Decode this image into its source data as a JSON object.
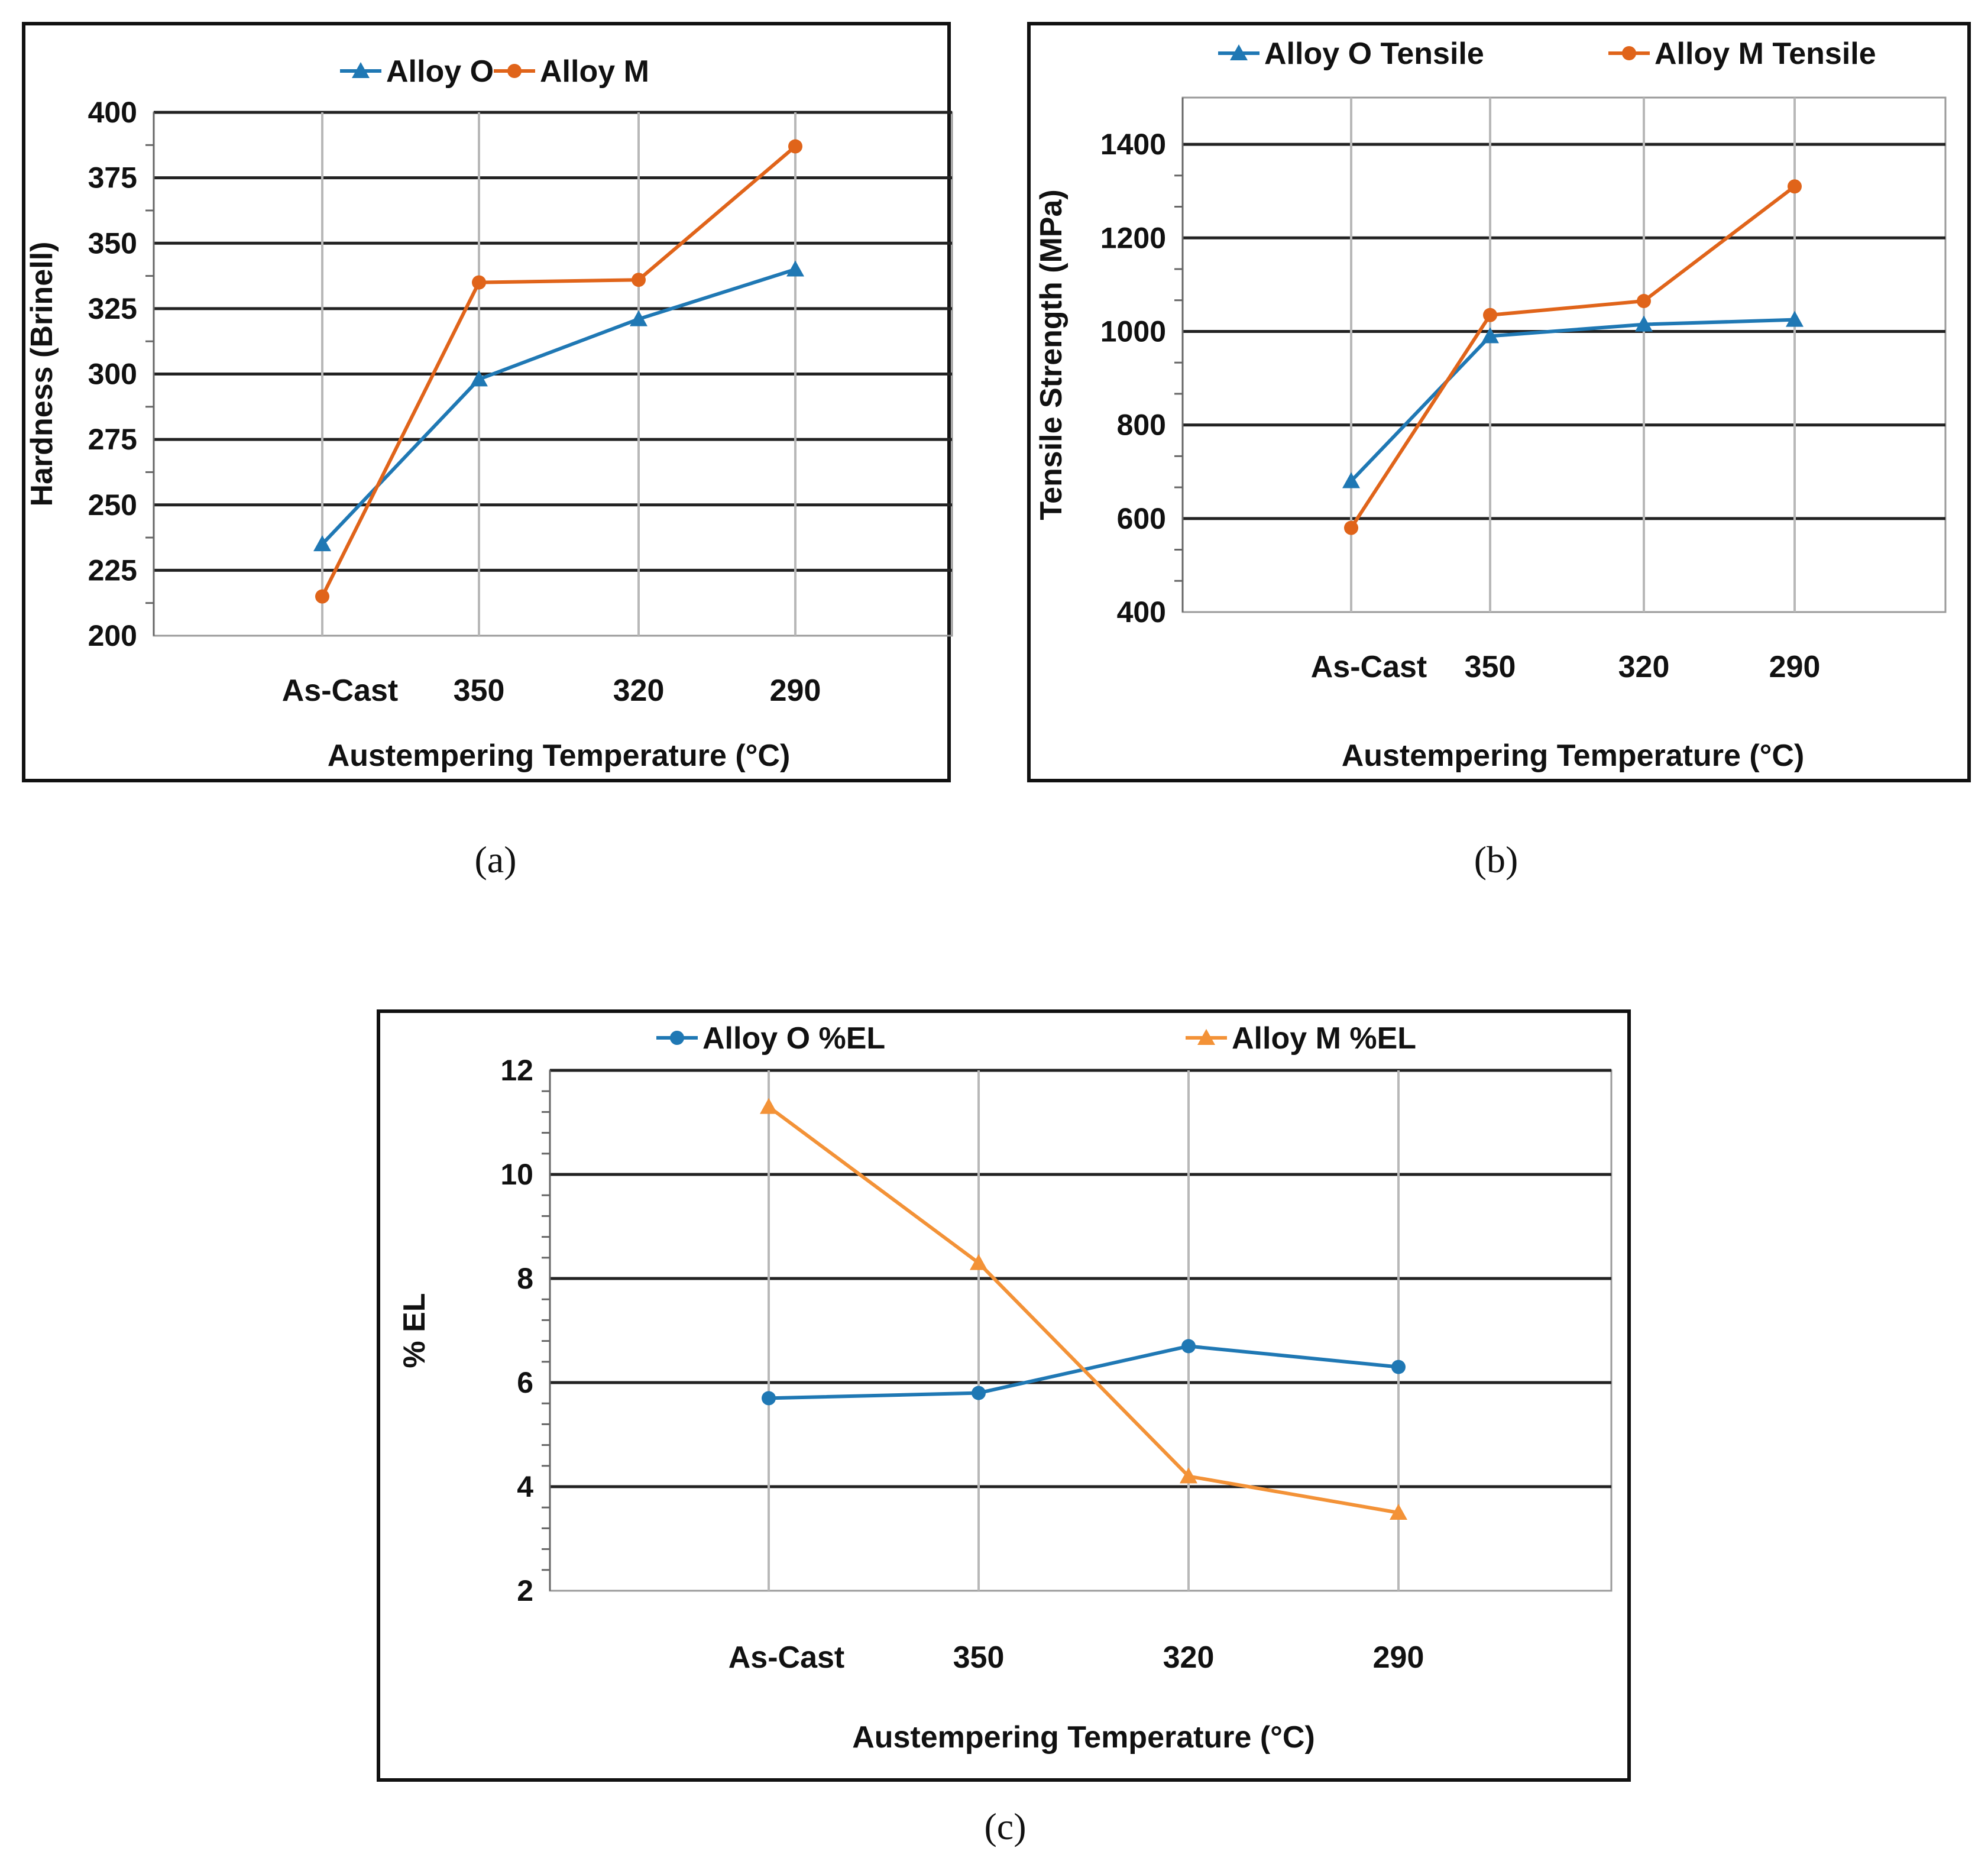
{
  "figure": {
    "captions": [
      "(a)",
      "(b)",
      "(c)"
    ]
  },
  "colors": {
    "alloy_o": "#1f78b4",
    "alloy_m_dark": "#e0641a",
    "alloy_m_light": "#f39237",
    "grid_major": "#222222",
    "grid_light": "#b8b8b8",
    "frame": "#111111"
  },
  "chart_data": [
    {
      "id": "a",
      "type": "line",
      "caption": "(a)",
      "categories": [
        "As-Cast",
        "350",
        "320",
        "290"
      ],
      "xlabel": "Austempering Temperature (°C)",
      "ylabel": "Hardness (Brinell)",
      "ylim": [
        200,
        400
      ],
      "yticks": [
        200,
        225,
        250,
        275,
        300,
        325,
        350,
        375,
        400
      ],
      "series": [
        {
          "name": "Alloy O",
          "values": [
            235,
            298,
            321,
            340
          ],
          "color": "#1f78b4",
          "marker": "triangle"
        },
        {
          "name": "Alloy M",
          "values": [
            215,
            335,
            336,
            387
          ],
          "color": "#e0641a",
          "marker": "circle"
        }
      ],
      "legend": "top-center",
      "grid": true
    },
    {
      "id": "b",
      "type": "line",
      "caption": "(b)",
      "categories": [
        "As-Cast",
        "350",
        "320",
        "290"
      ],
      "xlabel": "Austempering Temperature (°C)",
      "ylabel": "Tensile Strength (MPa)",
      "ylim": [
        400,
        1500
      ],
      "yticks": [
        400,
        600,
        800,
        1000,
        1200,
        1400
      ],
      "series": [
        {
          "name": "Alloy O Tensile",
          "values": [
            680,
            990,
            1015,
            1025
          ],
          "color": "#1f78b4",
          "marker": "triangle"
        },
        {
          "name": "Alloy M Tensile",
          "values": [
            580,
            1035,
            1065,
            1310
          ],
          "color": "#e0641a",
          "marker": "circle"
        }
      ],
      "legend": "top-center",
      "grid": true
    },
    {
      "id": "c",
      "type": "line",
      "caption": "(c)",
      "categories": [
        "As-Cast",
        "350",
        "320",
        "290"
      ],
      "xlabel": "Austempering Temperature (°C)",
      "ylabel": "% EL",
      "ylim": [
        2,
        12
      ],
      "yticks": [
        2,
        4,
        6,
        8,
        10,
        12
      ],
      "series": [
        {
          "name": "Alloy O %EL",
          "values": [
            5.7,
            5.8,
            6.7,
            6.3
          ],
          "color": "#1f78b4",
          "marker": "circle"
        },
        {
          "name": "Alloy M %EL",
          "values": [
            11.3,
            8.3,
            4.2,
            3.5
          ],
          "color": "#f39237",
          "marker": "triangle"
        }
      ],
      "legend": "top-center",
      "grid": true
    }
  ]
}
